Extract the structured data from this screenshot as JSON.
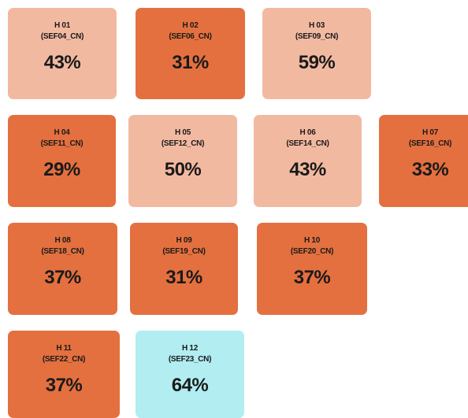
{
  "tiles": [
    {
      "label": "H 01",
      "code": "(SEF04_CN)",
      "value": "43%",
      "color": "#f2b9a1"
    },
    {
      "label": "H 02",
      "code": "(SEF06_CN)",
      "value": "31%",
      "color": "#e4703f"
    },
    {
      "label": "H 03",
      "code": "(SEF09_CN)",
      "value": "59%",
      "color": "#f2b9a1"
    },
    {
      "label": "H 04",
      "code": "(SEF11_CN)",
      "value": "29%",
      "color": "#e4703f"
    },
    {
      "label": "H 05",
      "code": "(SEF12_CN)",
      "value": "50%",
      "color": "#f2b9a1"
    },
    {
      "label": "H 06",
      "code": "(SEF14_CN)",
      "value": "43%",
      "color": "#f2b9a1"
    },
    {
      "label": "H 07",
      "code": "(SEF16_CN)",
      "value": "33%",
      "color": "#e4703f"
    },
    {
      "label": "H 08",
      "code": "(SEF18_CN)",
      "value": "37%",
      "color": "#e4703f"
    },
    {
      "label": "H 09",
      "code": "(SEF19_CN)",
      "value": "31%",
      "color": "#e4703f"
    },
    {
      "label": "H 10",
      "code": "(SEF20_CN)",
      "value": "37%",
      "color": "#e4703f"
    },
    {
      "label": "H 11",
      "code": "(SEF22_CN)",
      "value": "37%",
      "color": "#e4703f"
    },
    {
      "label": "H 12",
      "code": "(SEF23_CN)",
      "value": "64%",
      "color": "#b1edf1"
    }
  ]
}
